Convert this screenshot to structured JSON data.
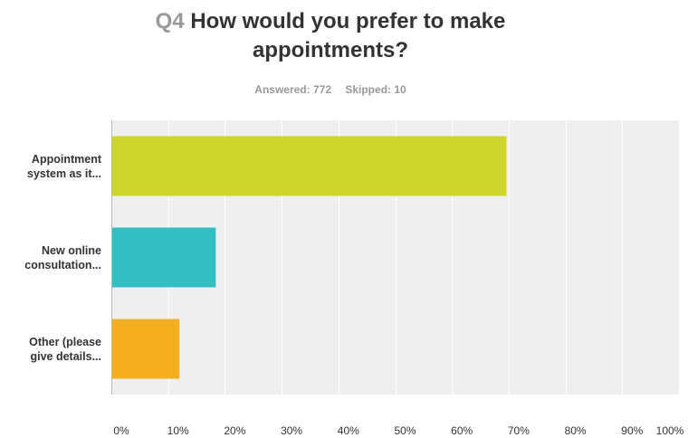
{
  "question": {
    "number": "Q4",
    "title_line1": "How would you prefer to make",
    "title_line2": "appointments?"
  },
  "stats": {
    "answered": "Answered: 772",
    "skipped": "Skipped: 10"
  },
  "chart_data": {
    "type": "bar",
    "orientation": "horizontal",
    "categories": [
      "Appointment system as it...",
      "New online consultation...",
      "Other (please give details..."
    ],
    "category_lines": [
      [
        "Appointment",
        "system as it..."
      ],
      [
        "New online",
        "consultation..."
      ],
      [
        "Other (please",
        "give details..."
      ]
    ],
    "values": [
      69.6,
      18.4,
      12.0
    ],
    "colors": [
      "#cdd42a",
      "#33bec1",
      "#f6ae21"
    ],
    "xlim": [
      0,
      100
    ],
    "xticks": [
      "0%",
      "10%",
      "20%",
      "30%",
      "40%",
      "50%",
      "60%",
      "70%",
      "80%",
      "90%",
      "100%"
    ],
    "grid": true,
    "legend": "none"
  }
}
